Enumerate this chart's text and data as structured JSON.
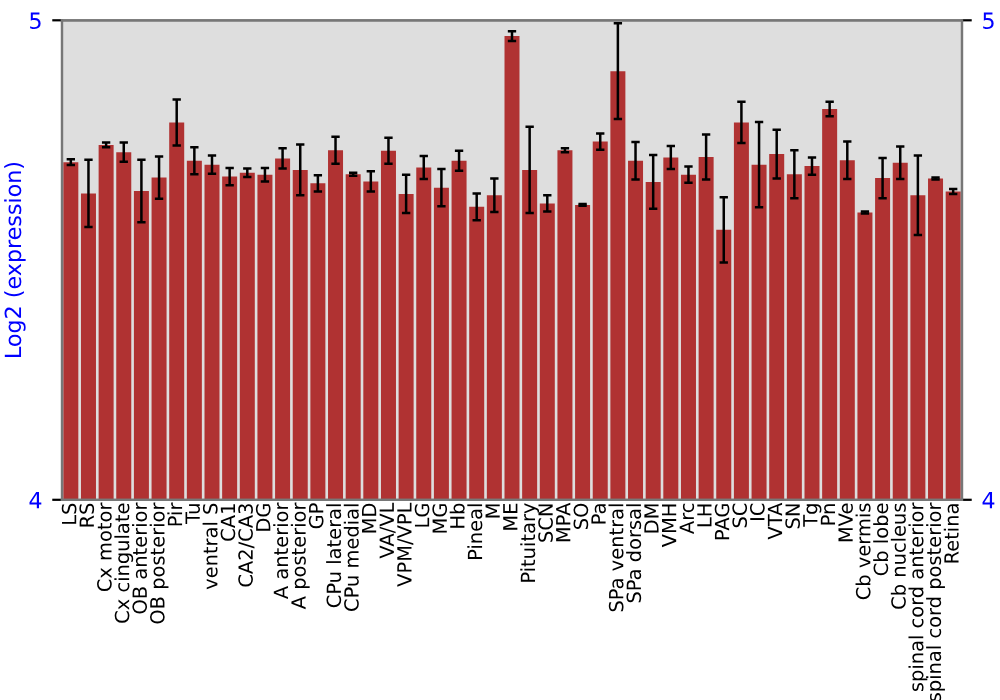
{
  "chart_data": {
    "type": "bar",
    "ylabel": "Log2 (expression)",
    "categories": [
      "LS",
      "RS",
      "Cx motor",
      "Cx cingulate",
      "OB anterior",
      "OB posterior",
      "Pir",
      "Tu",
      "ventral S",
      "CA1",
      "CA2/CA3",
      "DG",
      "A anterior",
      "A posterior",
      "GP",
      "CPu lateral",
      "CPu medial",
      "MD",
      "VA/VL",
      "VPM/VPL",
      "LG",
      "MG",
      "Hb",
      "Pineal",
      "M",
      "ME",
      "Pituitary",
      "SCN",
      "MPA",
      "SO",
      "Pa",
      "SPa ventral",
      "SPa dorsal",
      "DM",
      "VMH",
      "Arc",
      "LH",
      "PAG",
      "SC",
      "IC",
      "VTA",
      "SN",
      "Tg",
      "Pn",
      "MVe",
      "Cb vermis",
      "Cb lobe",
      "Cb nucleus",
      "spinal cord anterior",
      "spinal cord posterior",
      "Retina"
    ],
    "values": [
      4.704,
      4.639,
      4.74,
      4.725,
      4.644,
      4.672,
      4.787,
      4.707,
      4.699,
      4.674,
      4.682,
      4.678,
      4.712,
      4.688,
      4.66,
      4.729,
      4.679,
      4.664,
      4.728,
      4.638,
      4.693,
      4.651,
      4.707,
      4.611,
      4.635,
      4.967,
      4.688,
      4.618,
      4.729,
      4.615,
      4.747,
      4.894,
      4.707,
      4.663,
      4.714,
      4.678,
      4.715,
      4.563,
      4.787,
      4.699,
      4.721,
      4.679,
      4.696,
      4.815,
      4.708,
      4.599,
      4.671,
      4.703,
      4.635,
      4.67,
      4.643
    ],
    "errors": [
      0.006,
      0.07,
      0.005,
      0.02,
      0.065,
      0.044,
      0.048,
      0.028,
      0.019,
      0.018,
      0.009,
      0.014,
      0.021,
      0.053,
      0.017,
      0.028,
      0.003,
      0.021,
      0.027,
      0.04,
      0.024,
      0.039,
      0.021,
      0.028,
      0.035,
      0.01,
      0.09,
      0.017,
      0.004,
      0.002,
      0.017,
      0.1,
      0.039,
      0.056,
      0.024,
      0.017,
      0.047,
      0.068,
      0.043,
      0.089,
      0.051,
      0.05,
      0.018,
      0.015,
      0.039,
      0.002,
      0.042,
      0.034,
      0.083,
      0.002,
      0.005
    ],
    "color": "#b03232",
    "ylim": [
      4,
      5
    ],
    "yticks": [
      4,
      5
    ],
    "y2lim": [
      4,
      5
    ],
    "y2ticks": [
      4,
      5
    ],
    "grid": false,
    "legend": false
  }
}
